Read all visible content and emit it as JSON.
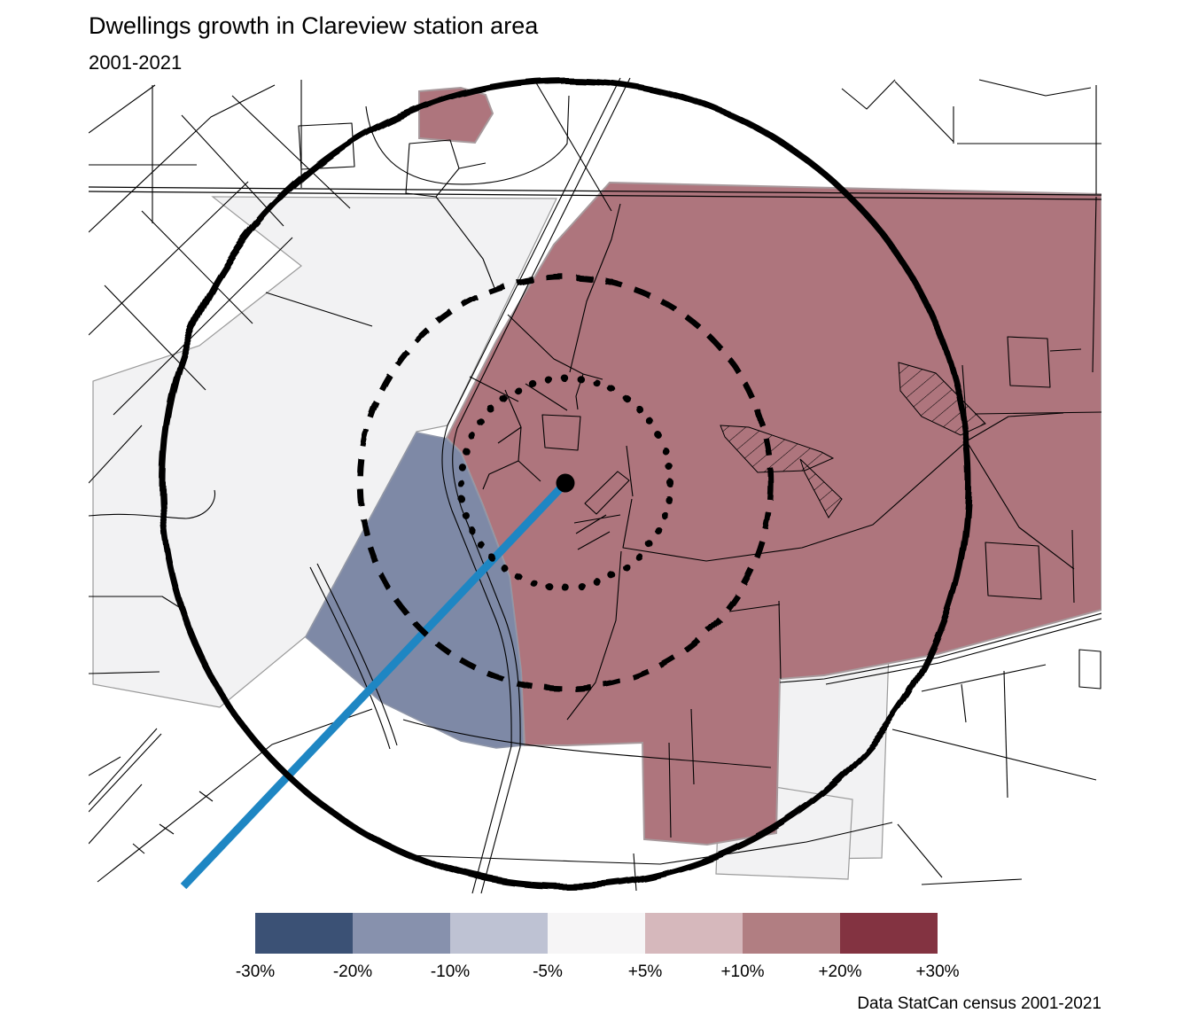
{
  "header": {
    "title": "Dwellings growth in Clareview station area",
    "subtitle": "2001-2021"
  },
  "caption": "Data StatCan census 2001-2021",
  "legend": {
    "swatches": [
      "#3b5175",
      "#8791ad",
      "#bec2d3",
      "#f6f5f6",
      "#d6b8bc",
      "#b17e82",
      "#833341"
    ],
    "labels": [
      "-30%",
      "-20%",
      "-10%",
      "-5%",
      "+5%",
      "+10%",
      "+20%",
      "+30%"
    ]
  },
  "map": {
    "colors": {
      "growth_area": "#ae757d",
      "decline_area": "#7e89a6",
      "stable_area": "#f2f2f3",
      "stable_border": "#9a9a9a",
      "transit_line": "#1e86c3",
      "street": "#000000",
      "ring": "#000000"
    },
    "rings": [
      {
        "name": "inner-ring",
        "style": "dotted"
      },
      {
        "name": "middle-ring",
        "style": "dashed"
      },
      {
        "name": "outer-ring",
        "style": "solid"
      }
    ],
    "station_marker": "filled-black-circle"
  }
}
